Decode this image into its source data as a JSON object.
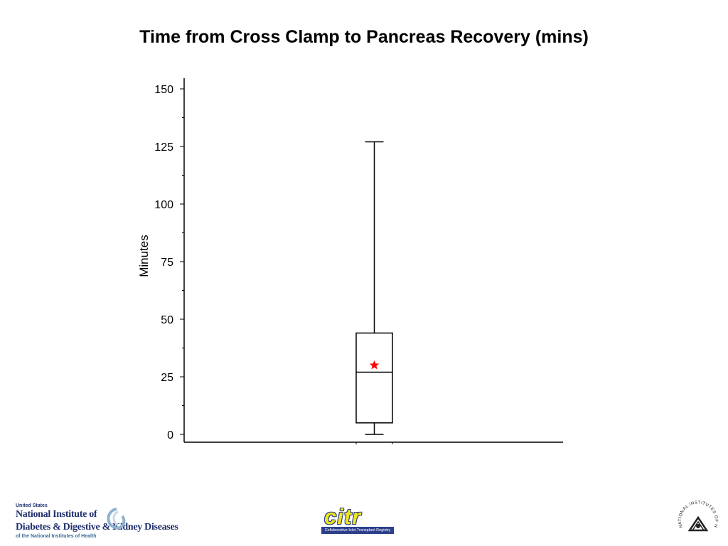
{
  "slide": {
    "title": "Time from Cross Clamp to Pancreas Recovery (mins)"
  },
  "chart_data": {
    "type": "boxplot",
    "title": "Time from Cross Clamp to Pancreas Recovery (mins)",
    "ylabel": "Minutes",
    "xlabel": "",
    "ylim": [
      0,
      150
    ],
    "yticks": [
      0,
      25,
      50,
      75,
      100,
      125,
      150
    ],
    "minor_tick_step": 12.5,
    "grid": false,
    "box": {
      "min": 0,
      "q1": 5,
      "median": 27,
      "q3": 44,
      "max": 127,
      "mean": 30
    },
    "colors": {
      "line": "#000000",
      "mean_marker": "#ff0000"
    }
  },
  "footer": {
    "niddk": {
      "line1": "United States",
      "line2": "National Institute of",
      "line3": "Diabetes & Digestive & Kidney Diseases",
      "line4": "of the National Institutes of Health"
    },
    "citr": {
      "word": "citr",
      "tagline": "Collaborative Islet Transplant Registry"
    },
    "nih_seal": {
      "text": "NATIONAL INSTITUTES OF HEALTH"
    }
  }
}
